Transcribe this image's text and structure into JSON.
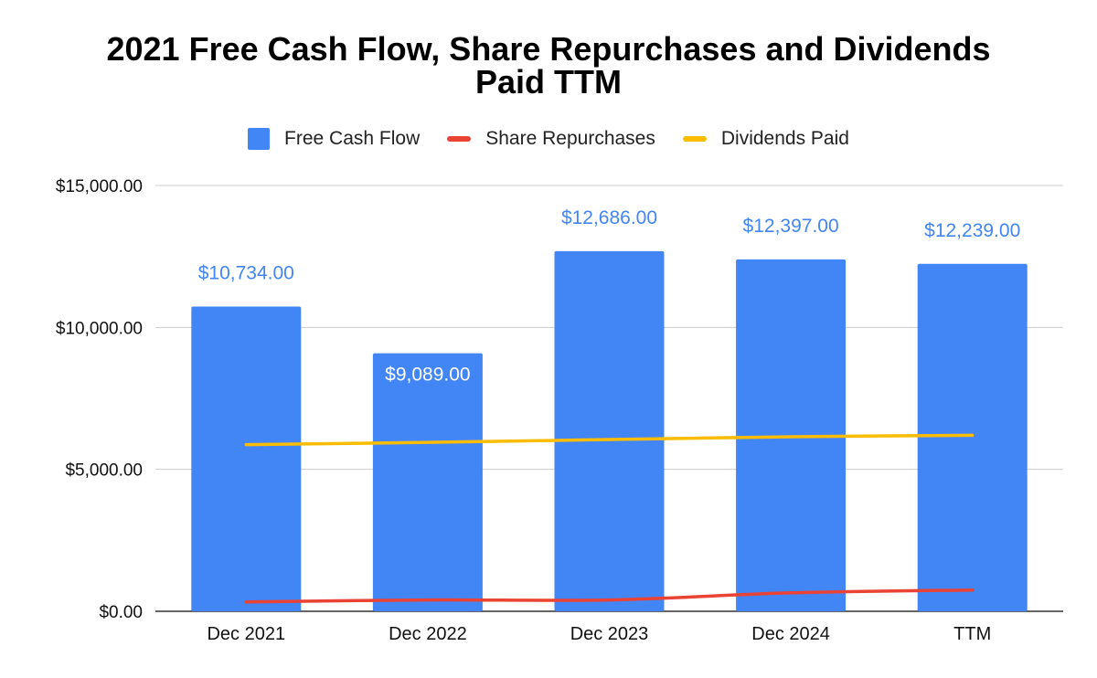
{
  "chart_data": {
    "type": "bar",
    "title_line1": "2021 Free Cash Flow, Share Repurchases and Dividends",
    "title_line2": "Paid TTM",
    "categories": [
      "Dec 2021",
      "Dec 2022",
      "Dec 2023",
      "Dec 2024",
      "TTM"
    ],
    "series": [
      {
        "name": "Free Cash Flow",
        "kind": "bar",
        "color": "#4285F4",
        "values": [
          10734,
          9089,
          12686,
          12397,
          12239
        ],
        "labels": [
          "$10,734.00",
          "$9,089.00",
          "$12,686.00",
          "$12,397.00",
          "$12,239.00"
        ]
      },
      {
        "name": "Share Repurchases",
        "kind": "line",
        "color": "#EA4335",
        "values": [
          330,
          400,
          400,
          650,
          750
        ]
      },
      {
        "name": "Dividends Paid",
        "kind": "line",
        "color": "#FBBC04",
        "values": [
          5870,
          5950,
          6050,
          6150,
          6200
        ]
      }
    ],
    "ylim": [
      0,
      15000
    ],
    "yticks": [
      {
        "value": 0,
        "label": "$0.00"
      },
      {
        "value": 5000,
        "label": "$5,000.00"
      },
      {
        "value": 10000,
        "label": "$10,000.00"
      },
      {
        "value": 15000,
        "label": "$15,000.00"
      }
    ],
    "grid": true,
    "legend_position": "top"
  }
}
